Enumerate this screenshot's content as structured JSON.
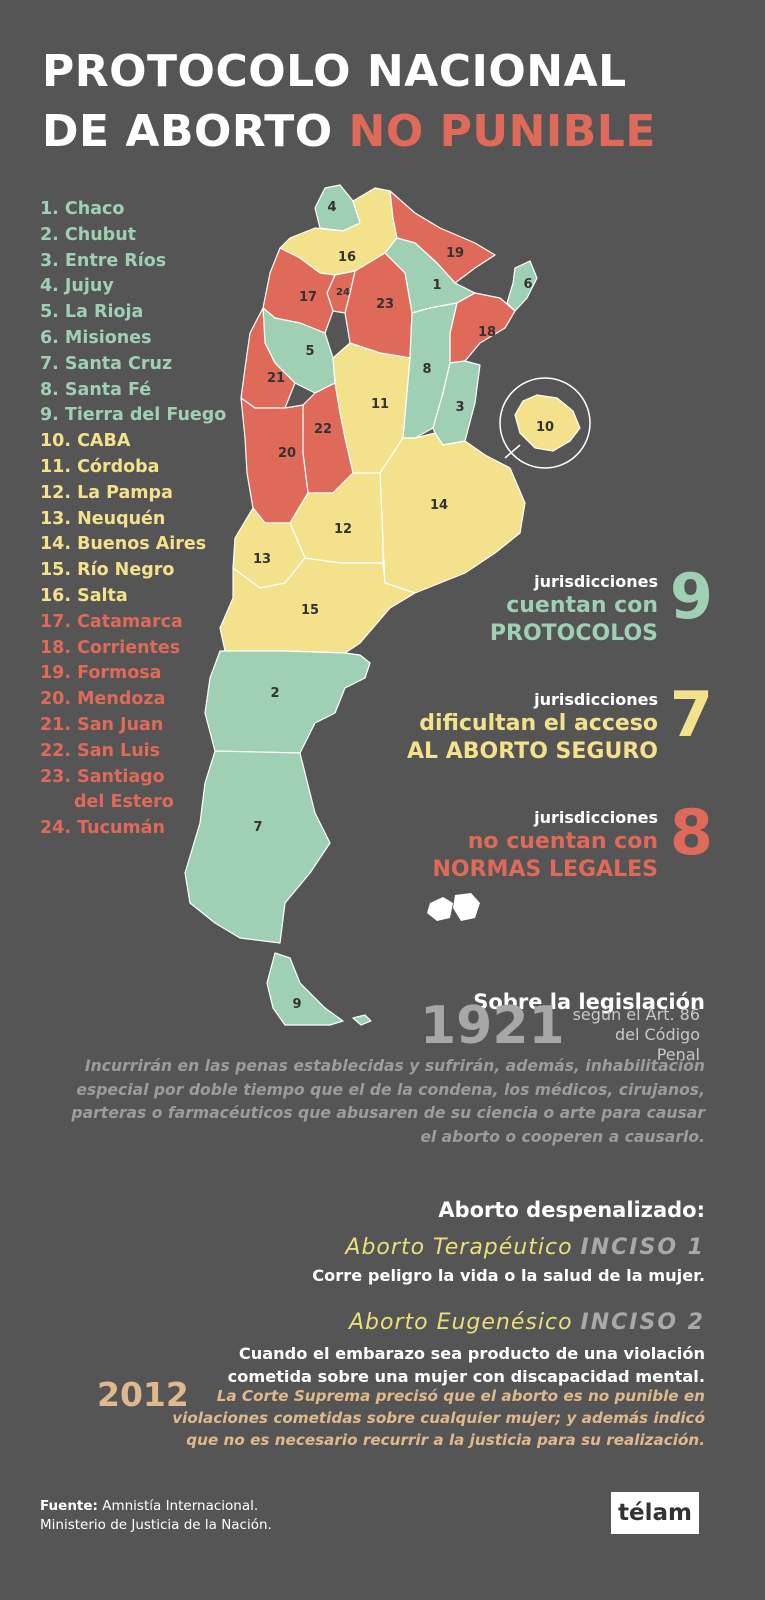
{
  "title": {
    "line1": "PROTOCOLO NACIONAL",
    "line2_white": "DE ABORTO",
    "line2_red": "NO PUNIBLE"
  },
  "colors": {
    "green": "#9fd0b3",
    "yellow": "#f3e28b",
    "red": "#e06a5a",
    "background": "#555555"
  },
  "legend": [
    {
      "text": "1. Chaco",
      "group": "g"
    },
    {
      "text": "2. Chubut",
      "group": "g"
    },
    {
      "text": "3. Entre Ríos",
      "group": "g"
    },
    {
      "text": "4. Jujuy",
      "group": "g"
    },
    {
      "text": "5. La Rioja",
      "group": "g"
    },
    {
      "text": "6. Misiones",
      "group": "g"
    },
    {
      "text": "7. Santa Cruz",
      "group": "g"
    },
    {
      "text": "8. Santa Fé",
      "group": "g"
    },
    {
      "text": "9. Tierra del Fuego",
      "group": "g"
    },
    {
      "text": "10. CABA",
      "group": "y"
    },
    {
      "text": "11. Córdoba",
      "group": "y"
    },
    {
      "text": "12. La Pampa",
      "group": "y"
    },
    {
      "text": "13. Neuquén",
      "group": "y"
    },
    {
      "text": "14. Buenos Aires",
      "group": "y"
    },
    {
      "text": "15. Río Negro",
      "group": "y"
    },
    {
      "text": "16. Salta",
      "group": "y"
    },
    {
      "text": "17. Catamarca",
      "group": "r"
    },
    {
      "text": "18. Corrientes",
      "group": "r"
    },
    {
      "text": "19. Formosa",
      "group": "r"
    },
    {
      "text": "20. Mendoza",
      "group": "r"
    },
    {
      "text": "21. San Juan",
      "group": "r"
    },
    {
      "text": "22. San Luis",
      "group": "r"
    },
    {
      "text": "23. Santiago",
      "group": "r"
    },
    {
      "text": "del Estero",
      "group": "r",
      "continuation": true
    },
    {
      "text": "24. Tucumán",
      "group": "r"
    }
  ],
  "map": {
    "provinces": [
      {
        "n": "1",
        "group": "g"
      },
      {
        "n": "2",
        "group": "g"
      },
      {
        "n": "3",
        "group": "g"
      },
      {
        "n": "4",
        "group": "g"
      },
      {
        "n": "5",
        "group": "g"
      },
      {
        "n": "6",
        "group": "g"
      },
      {
        "n": "7",
        "group": "g"
      },
      {
        "n": "8",
        "group": "g"
      },
      {
        "n": "9",
        "group": "g"
      },
      {
        "n": "10",
        "group": "y"
      },
      {
        "n": "11",
        "group": "y"
      },
      {
        "n": "12",
        "group": "y"
      },
      {
        "n": "13",
        "group": "y"
      },
      {
        "n": "14",
        "group": "y"
      },
      {
        "n": "15",
        "group": "y"
      },
      {
        "n": "16",
        "group": "y"
      },
      {
        "n": "17",
        "group": "r"
      },
      {
        "n": "18",
        "group": "r"
      },
      {
        "n": "19",
        "group": "r"
      },
      {
        "n": "20",
        "group": "r"
      },
      {
        "n": "21",
        "group": "r"
      },
      {
        "n": "22",
        "group": "r"
      },
      {
        "n": "23",
        "group": "r"
      },
      {
        "n": "24",
        "group": "r"
      }
    ]
  },
  "stats": [
    {
      "count": "9",
      "small": "jurisdicciones",
      "line1": "cuentan con",
      "line2": "PROTOCOLOS",
      "color": "#9fd0b3"
    },
    {
      "count": "7",
      "small": "jurisdicciones",
      "line1": "dificultan el acceso",
      "line2": "AL ABORTO SEGURO",
      "color": "#f3e28b"
    },
    {
      "count": "8",
      "small": "jurisdicciones",
      "line1": "no cuentan con",
      "line2": "NORMAS LEGALES",
      "color": "#e06a5a"
    }
  ],
  "legislacion": {
    "heading": "Sobre la legislación",
    "year": "1921",
    "art_line1": "según el Art. 86",
    "art_line2": "del Código Penal",
    "quote": [
      "Incurrirán en las penas establecidas y sufrirán, además, inhabilitación",
      "especial por doble tiempo que el de la condena, los médicos, cirujanos,",
      "parteras o farmacéuticos que abusaren de su ciencia o arte para causar",
      "el aborto o cooperen a causarlo."
    ]
  },
  "despenalizado": {
    "heading": "Aborto despenalizado:",
    "inciso1_title": "Aborto Terapéutico",
    "inciso1_label": "INCISO 1",
    "inciso1_desc": "Corre peligro la vida o la salud de la mujer.",
    "inciso2_title": "Aborto Eugenésico",
    "inciso2_label": "INCISO 2",
    "inciso2_desc_1": "Cuando el embarazo sea producto de una violación",
    "inciso2_desc_2": "cometida sobre una mujer con discapacidad mental."
  },
  "corte": {
    "year": "2012",
    "lines": [
      "La Corte Suprema precisó que el aborto es no punible en",
      "violaciones cometidas sobre cualquier mujer; y además indicó",
      "que no es necesario recurrir a la justicia para su realización."
    ]
  },
  "footer": {
    "fuente_label": "Fuente:",
    "fuente_1": "Amnistía Internacional.",
    "fuente_2": "Ministerio de Justicia de la Nación.",
    "logo": "télam"
  }
}
